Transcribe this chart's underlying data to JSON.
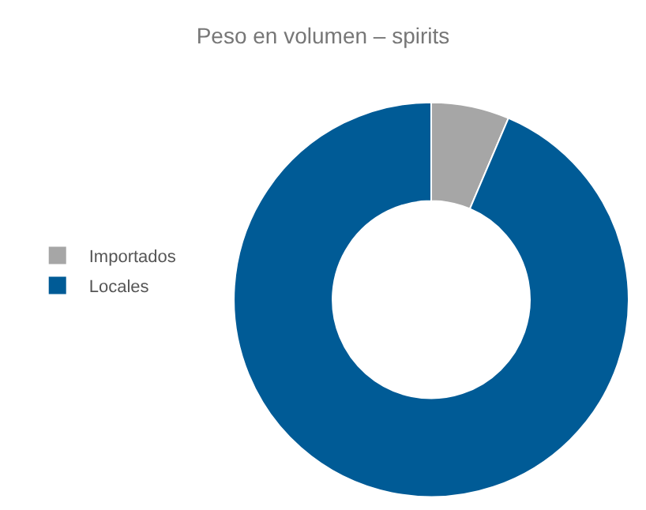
{
  "chart_data": {
    "type": "donut",
    "title": "Peso en volumen – spirits",
    "categories": [
      "Importados",
      "Locales"
    ],
    "values": [
      6.4,
      93.6
    ],
    "colors": [
      "#a6a6a6",
      "#005b96"
    ],
    "legend": "left"
  }
}
